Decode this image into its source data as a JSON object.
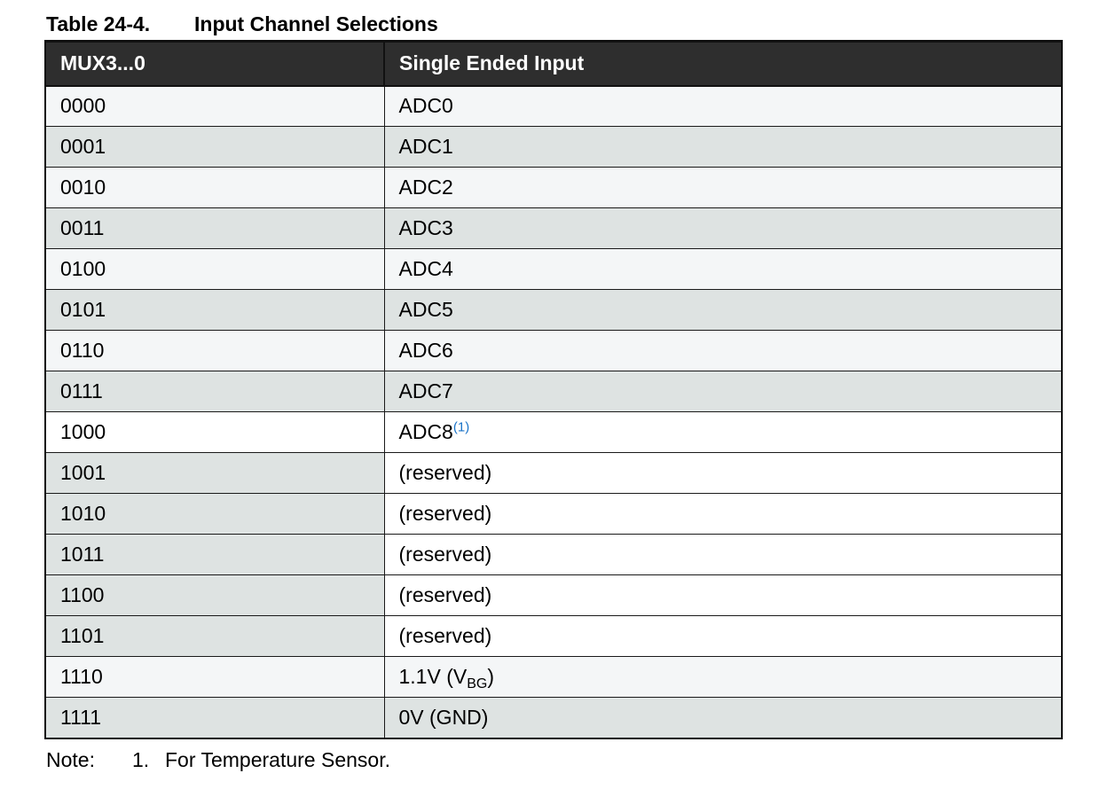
{
  "caption": {
    "number": "Table 24-4.",
    "title": "Input Channel Selections"
  },
  "table": {
    "headers": [
      "MUX3...0",
      "Single Ended Input"
    ],
    "rows": [
      {
        "mux": "0000",
        "input": "ADC0"
      },
      {
        "mux": "0001",
        "input": "ADC1"
      },
      {
        "mux": "0010",
        "input": "ADC2"
      },
      {
        "mux": "0011",
        "input": "ADC3"
      },
      {
        "mux": "0100",
        "input": "ADC4"
      },
      {
        "mux": "0101",
        "input": "ADC5"
      },
      {
        "mux": "0110",
        "input": "ADC6"
      },
      {
        "mux": "0111",
        "input": "ADC7"
      },
      {
        "mux": "1000",
        "input": "ADC8",
        "footnote_ref": "(1)"
      },
      {
        "mux": "1001",
        "input": "(reserved)"
      },
      {
        "mux": "1010",
        "input": "(reserved)"
      },
      {
        "mux": "1011",
        "input": "(reserved)"
      },
      {
        "mux": "1100",
        "input": "(reserved)"
      },
      {
        "mux": "1101",
        "input": "(reserved)"
      },
      {
        "mux": "1110",
        "input": "1.1V (V",
        "subscript": "BG",
        "input_suffix": ")"
      },
      {
        "mux": "1111",
        "input": "0V (GND)"
      }
    ]
  },
  "note": {
    "label": "Note:",
    "number": "1.",
    "text": "For Temperature Sensor."
  },
  "colors": {
    "header_bg": "#2e2e2e",
    "row_light": "#f4f6f7",
    "row_shaded": "#dee3e2",
    "footnote_link": "#1a73c8"
  }
}
